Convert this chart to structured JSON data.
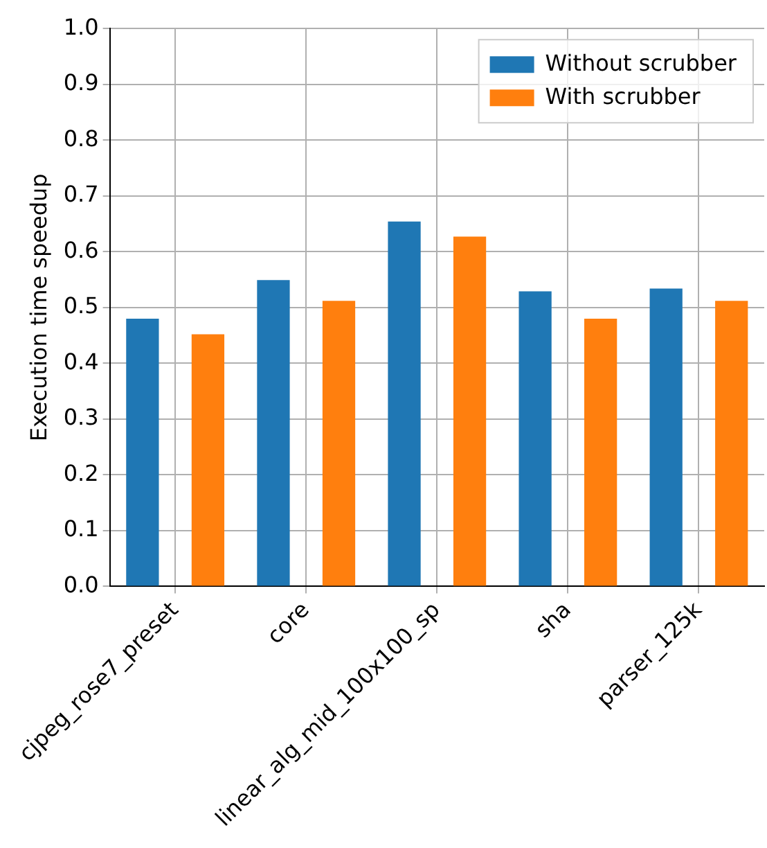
{
  "chart_data": {
    "type": "bar",
    "ylabel": "Execution time speedup",
    "categories": [
      "cjpeg_rose7_preset",
      "core",
      "linear_alg_mid_100x100_sp",
      "sha",
      "parser_125k"
    ],
    "series": [
      {
        "name": "Without scrubber",
        "color": "#1f77b4",
        "values": [
          0.48,
          0.549,
          0.654,
          0.529,
          0.534
        ]
      },
      {
        "name": "With scrubber",
        "color": "#ff7f0e",
        "values": [
          0.452,
          0.512,
          0.627,
          0.48,
          0.512
        ]
      }
    ],
    "ylim": [
      0,
      1
    ],
    "yticks": [
      {
        "value": 0,
        "label": "0.0"
      },
      {
        "value": 0.1,
        "label": "0.1"
      },
      {
        "value": 0.2,
        "label": "0.2"
      },
      {
        "value": 0.3,
        "label": "0.3"
      },
      {
        "value": 0.4,
        "label": "0.4"
      },
      {
        "value": 0.5,
        "label": "0.5"
      },
      {
        "value": 0.6,
        "label": "0.6"
      },
      {
        "value": 0.7,
        "label": "0.7"
      },
      {
        "value": 0.8,
        "label": "0.8"
      },
      {
        "value": 0.9,
        "label": "0.9"
      },
      {
        "value": 1,
        "label": "1.0"
      }
    ],
    "grid": true,
    "legend": "top right"
  }
}
